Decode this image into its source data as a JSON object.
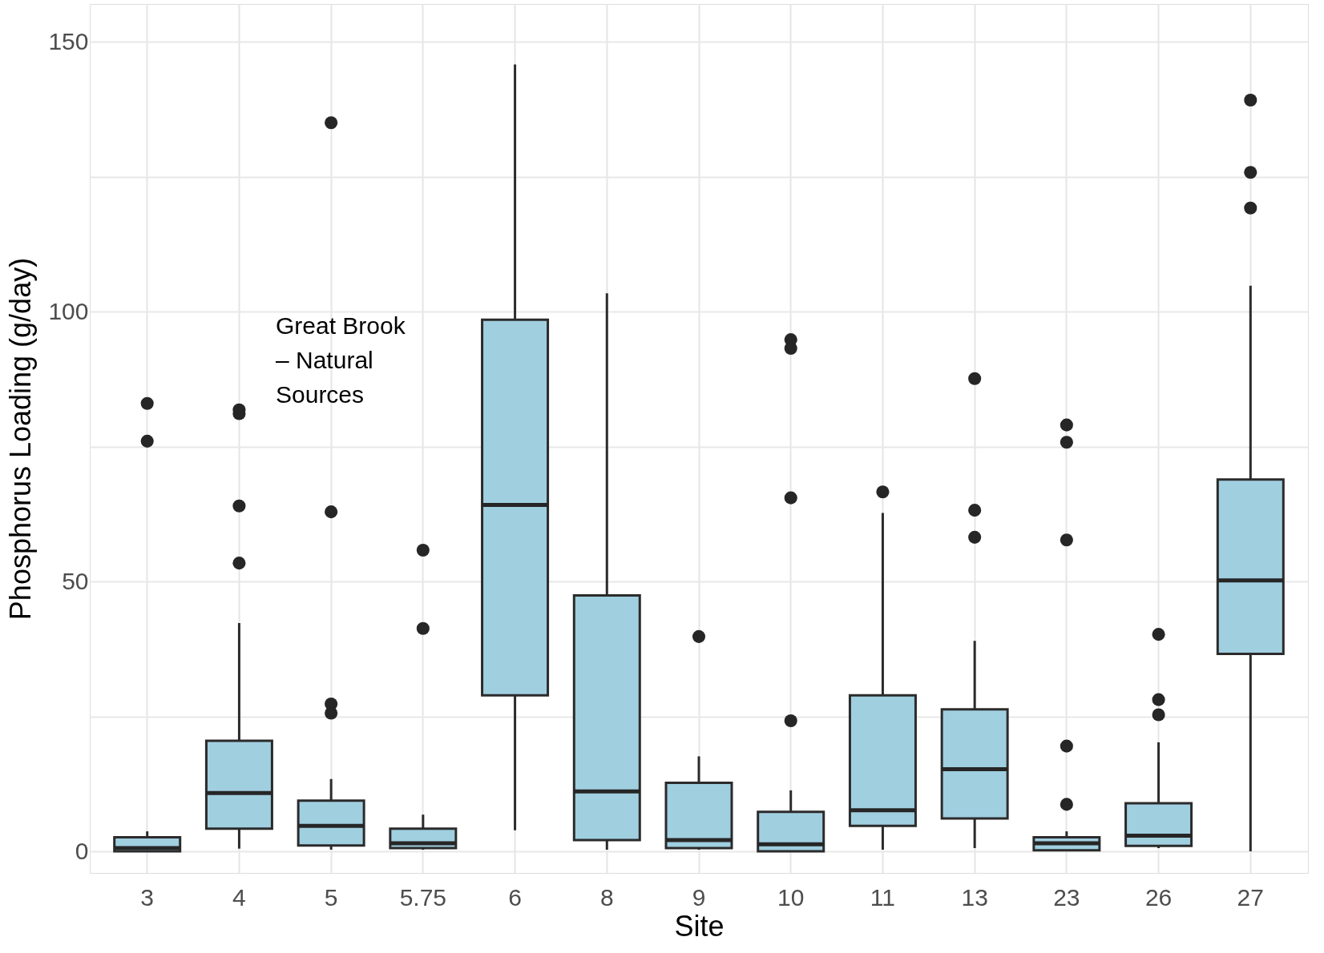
{
  "chart_data": {
    "type": "box",
    "xlabel": "Site",
    "ylabel": "Phosphorus Loading (g/day)",
    "categories": [
      "3",
      "4",
      "5",
      "5.75",
      "6",
      "8",
      "9",
      "10",
      "11",
      "13",
      "23",
      "26",
      "27"
    ],
    "color": "#a0cfe0",
    "boxes": [
      {
        "low": 0,
        "q1": 0,
        "median": 0.6,
        "q3": 2.6,
        "high": 3.7,
        "outliers": [
          83,
          76
        ]
      },
      {
        "low": 0.5,
        "q1": 4.2,
        "median": 10.8,
        "q3": 20.5,
        "high": 42.3,
        "outliers": [
          81.8,
          81.1,
          64,
          53.4
        ]
      },
      {
        "low": 0.3,
        "q1": 1.1,
        "median": 4.7,
        "q3": 9.4,
        "high": 13.4,
        "outliers": [
          135,
          62.9,
          27.3,
          25.6
        ]
      },
      {
        "low": 0.3,
        "q1": 0.6,
        "median": 1.5,
        "q3": 4.2,
        "high": 6.8,
        "outliers": [
          55.8,
          41.3
        ]
      },
      {
        "low": 3.9,
        "q1": 28.9,
        "median": 64.2,
        "q3": 98.5,
        "high": 145.8
      },
      {
        "low": 0.3,
        "q1": 2.1,
        "median": 11.1,
        "q3": 47.4,
        "high": 103.4
      },
      {
        "low": 0.3,
        "q1": 0.6,
        "median": 2.1,
        "q3": 12.7,
        "high": 17.6,
        "outliers": [
          39.8
        ]
      },
      {
        "low": 0,
        "q1": 0,
        "median": 1.3,
        "q3": 7.3,
        "high": 11.3,
        "outliers": [
          94.8,
          93.2,
          65.5,
          24.2
        ]
      },
      {
        "low": 0.3,
        "q1": 4.7,
        "median": 7.6,
        "q3": 28.9,
        "high": 62.7,
        "outliers": [
          66.6
        ]
      },
      {
        "low": 0.6,
        "q1": 6.1,
        "median": 15.2,
        "q3": 26.3,
        "high": 39,
        "outliers": [
          87.6,
          63.2,
          58.2
        ]
      },
      {
        "low": 0,
        "q1": 0.2,
        "median": 1.5,
        "q3": 2.6,
        "high": 3.7,
        "outliers": [
          79,
          75.8,
          57.7,
          19.5,
          8.7
        ]
      },
      {
        "low": 0.6,
        "q1": 1,
        "median": 2.9,
        "q3": 8.9,
        "high": 20.2,
        "outliers": [
          40.2,
          28.1,
          25.3
        ]
      },
      {
        "low": 0,
        "q1": 36.6,
        "median": 50.2,
        "q3": 68.9,
        "high": 104.8,
        "outliers": [
          139.2,
          125.8,
          119.2
        ]
      }
    ],
    "ylim": [
      -4,
      157
    ],
    "yticks": [
      0,
      {
        "value": 25,
        "label": null
      },
      50,
      {
        "value": 75,
        "label": null
      },
      100,
      {
        "value": 125,
        "label": null
      },
      150
    ],
    "grid": true,
    "annotations": [
      "Great Brook – Natural Sources"
    ]
  }
}
